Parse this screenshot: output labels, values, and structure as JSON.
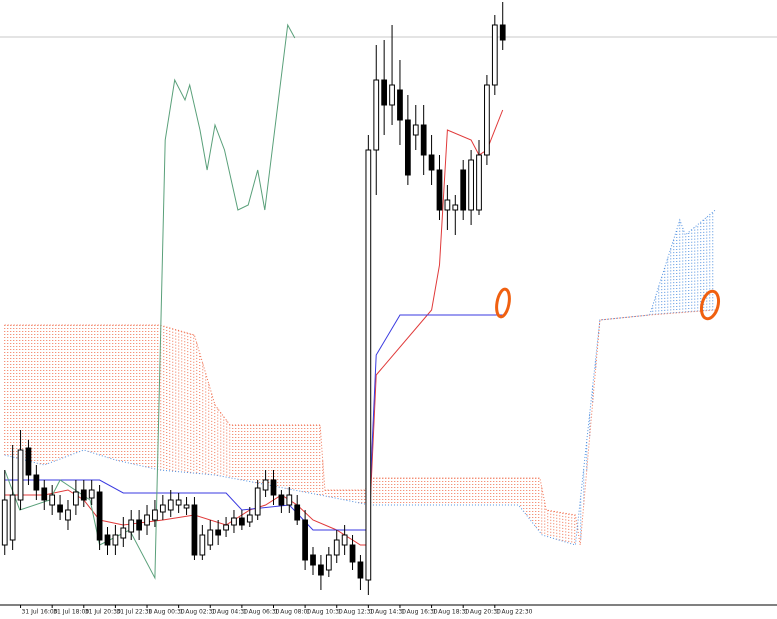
{
  "chart_data": {
    "type": "candlestick",
    "open": [
      60,
      65,
      105,
      157,
      130,
      117,
      100,
      100,
      85,
      100,
      115,
      107,
      113,
      70,
      60,
      67,
      73,
      85,
      80,
      85,
      93,
      95,
      100,
      97,
      100,
      50,
      60,
      75,
      75,
      80,
      87,
      83,
      90,
      115,
      125,
      110,
      100,
      100,
      85,
      50,
      40,
      35,
      50,
      60,
      60,
      43,
      25,
      455,
      525,
      500,
      515,
      485,
      470,
      480,
      450,
      435,
      395,
      395,
      435,
      395,
      395,
      450,
      520,
      580
    ],
    "high": [
      135,
      160,
      175,
      165,
      140,
      125,
      120,
      110,
      105,
      125,
      125,
      125,
      120,
      78,
      80,
      88,
      95,
      95,
      100,
      105,
      110,
      115,
      112,
      108,
      108,
      80,
      85,
      85,
      88,
      95,
      95,
      98,
      125,
      135,
      135,
      115,
      118,
      110,
      95,
      58,
      50,
      58,
      75,
      80,
      70,
      50,
      470,
      560,
      565,
      580,
      545,
      510,
      500,
      500,
      470,
      450,
      420,
      410,
      445,
      455,
      465,
      530,
      590,
      603
    ],
    "low": [
      50,
      55,
      95,
      120,
      105,
      95,
      90,
      85,
      75,
      90,
      98,
      100,
      55,
      50,
      50,
      58,
      65,
      65,
      70,
      78,
      85,
      88,
      92,
      90,
      45,
      45,
      55,
      60,
      68,
      72,
      75,
      78,
      85,
      108,
      100,
      92,
      92,
      80,
      35,
      30,
      15,
      28,
      42,
      50,
      35,
      15,
      10,
      410,
      470,
      480,
      460,
      420,
      455,
      430,
      420,
      385,
      375,
      370,
      385,
      380,
      390,
      440,
      510,
      555
    ],
    "close": [
      105,
      110,
      155,
      130,
      115,
      105,
      110,
      93,
      95,
      113,
      105,
      115,
      65,
      60,
      70,
      77,
      85,
      75,
      90,
      95,
      100,
      105,
      105,
      100,
      50,
      70,
      75,
      70,
      80,
      87,
      80,
      90,
      117,
      125,
      110,
      100,
      110,
      85,
      45,
      40,
      30,
      50,
      65,
      70,
      43,
      27,
      455,
      525,
      500,
      520,
      485,
      430,
      480,
      450,
      435,
      395,
      405,
      400,
      395,
      445,
      450,
      520,
      580,
      565
    ],
    "bull_color": "#ffffff",
    "bear_color": "#000000",
    "candle_stroke": "#000000",
    "lines": [
      {
        "color": "#e03a3a",
        "style": "solid",
        "x": [
          0,
          5,
          8,
          10,
          12,
          15,
          20,
          24,
          28,
          31,
          33,
          35,
          37,
          39,
          42,
          45,
          46,
          47,
          54,
          55,
          56,
          59,
          60,
          61,
          63
        ],
        "values": [
          110,
          110,
          115,
          105,
          85,
          80,
          85,
          90,
          80,
          95,
          100,
          110,
          100,
          85,
          75,
          60,
          60,
          230,
          295,
          340,
          475,
          465,
          450,
          455,
          495
        ]
      },
      {
        "color": "#3a3ae0",
        "style": "solid",
        "x": [
          0,
          12,
          15,
          28,
          30,
          36,
          39,
          45,
          46,
          47,
          50,
          63
        ],
        "values": [
          125,
          125,
          112,
          112,
          95,
          100,
          75,
          75,
          75,
          250,
          290,
          290
        ]
      },
      {
        "color": "#5aa07a",
        "style": "solid",
        "x": [
          0,
          1.9,
          5.7,
          7,
          10.8,
          12,
          15.8,
          19,
          20.3,
          21.5,
          22.8,
          23.4,
          24.7,
          25.6,
          26.6,
          27.8,
          29.5,
          30.8,
          32,
          32.9,
          35.8,
          36.7
        ],
        "values": [
          135,
          95,
          105,
          125,
          105,
          60,
          75,
          27,
          465,
          525,
          505,
          520,
          475,
          435,
          480,
          455,
          395,
          400,
          435,
          395,
          580,
          567
        ]
      }
    ],
    "cloud": {
      "span_a": {
        "color": "#f07050",
        "x": [
          0,
          19.6,
          24,
          26.6,
          28.5,
          39.9,
          40.5,
          45.6,
          46.2,
          67.7,
          68.5,
          72.2,
          72.8,
          75.3,
          81.6,
          89.9
        ],
        "values": [
          280,
          280,
          270,
          200,
          180,
          180,
          115,
          115,
          127,
          127,
          95,
          90,
          60,
          285,
          290,
          295
        ]
      },
      "span_b": {
        "color": "#5090e0",
        "x": [
          0,
          5,
          10,
          14,
          19.6,
          26.6,
          30,
          39.9,
          46.2,
          65,
          68,
          72.2,
          75.3,
          81.6,
          85.4,
          86.1,
          89.9
        ],
        "values": [
          150,
          140,
          155,
          145,
          135,
          130,
          125,
          110,
          100,
          100,
          70,
          60,
          285,
          290,
          385,
          370,
          395
        ]
      }
    },
    "price_line": 568,
    "price_line_color": "#c8c8c8",
    "xlim": [
      -0.6,
      97.7
    ],
    "ylim": [
      0,
      605
    ],
    "xticks": [
      {
        "value": 2,
        "label": "31 Jul 16:00"
      },
      {
        "value": 6,
        "label": "31 Jul 18:00"
      },
      {
        "value": 10,
        "label": "31 Jul 20:30"
      },
      {
        "value": 14,
        "label": "31 Jul 22:30"
      },
      {
        "value": 18,
        "label": "1 Aug 00:30"
      },
      {
        "value": 22,
        "label": "1 Aug 02:30"
      },
      {
        "value": 26,
        "label": "1 Aug 04:30"
      },
      {
        "value": 30,
        "label": "1 Aug 06:30"
      },
      {
        "value": 34,
        "label": "1 Aug 08:00"
      },
      {
        "value": 38,
        "label": "1 Aug 10:30"
      },
      {
        "value": 42,
        "label": "1 Aug 12:30"
      },
      {
        "value": 46,
        "label": "1 Aug 14:30"
      },
      {
        "value": 50,
        "label": "1 Aug 16:30"
      },
      {
        "value": 54,
        "label": "1 Aug 18:30"
      },
      {
        "value": 58,
        "label": "1 Aug 20:30"
      },
      {
        "value": 62,
        "label": "1 Aug 22:30"
      }
    ]
  }
}
